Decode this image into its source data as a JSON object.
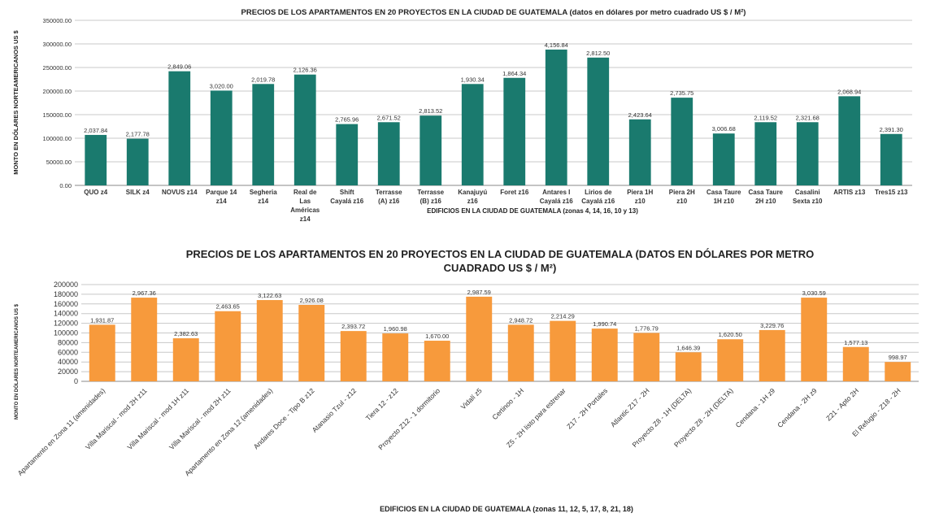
{
  "chart_data": [
    {
      "type": "bar",
      "title": "PRECIOS DE LOS APARTAMENTOS EN 20 PROYECTOS EN LA CIUDAD DE GUATEMALA (datos en dólares por metro cuadrado US $ / M²)",
      "xlabel": "EDIFICIOS EN LA CIUDAD DE GUATEMALA (zonas  4, 14, 16, 10 y 13)",
      "ylabel": "MONTO EN DÓLARES NORTEAMERICANOS US $",
      "ylim": [
        0,
        350000
      ],
      "yticks": [
        "0.00",
        "50000.00",
        "100000.00",
        "150000.00",
        "200000.00",
        "250000.00",
        "300000.00",
        "350000.00"
      ],
      "grid": true,
      "color": "#1a7a6e",
      "categories": [
        [
          "QUO z4"
        ],
        [
          "SILK z4"
        ],
        [
          "NOVUS z14"
        ],
        [
          "Parque 14",
          "z14"
        ],
        [
          "Segheria",
          "z14"
        ],
        [
          "Real de",
          "Las",
          "Américas",
          "z14"
        ],
        [
          "Shift",
          "Cayalá z16"
        ],
        [
          "Terrasse",
          "(A) z16"
        ],
        [
          "Terrasse",
          "(B) z16"
        ],
        [
          "Kanajuyú",
          "z16"
        ],
        [
          "Foret z16"
        ],
        [
          "Antares I",
          "Cayalá z16"
        ],
        [
          "Lirios de",
          "Cayalá z16"
        ],
        [
          "Piera 1H",
          "z10"
        ],
        [
          "Piera 2H",
          "z10"
        ],
        [
          "Casa Taure",
          "1H z10"
        ],
        [
          "Casa Taure",
          "2H z10"
        ],
        [
          "Casalini",
          "Sexta z10"
        ],
        [
          "ARTIS z13"
        ],
        [
          "Tres15 z13"
        ]
      ],
      "values": [
        107000,
        99000,
        242000,
        201000,
        215000,
        235000,
        130000,
        134000,
        148000,
        215000,
        228000,
        288000,
        271000,
        140000,
        186000,
        110000,
        134000,
        134000,
        189000,
        109000
      ],
      "labels": [
        "2,037.84",
        "2,177.78",
        "2,849.06",
        "3,020.00",
        "2,019.78",
        "2,126.36",
        "2,765.96",
        "2,671.52",
        "2,813.52",
        "1,930.34",
        "1,864.34",
        "4,156.84",
        "2,812.50",
        "2,423.64",
        "2,735.75",
        "3,006.68",
        "2,119.52",
        "2,321.68",
        "2,068.94",
        "2,391.30"
      ]
    },
    {
      "type": "bar",
      "title": [
        "PRECIOS DE LOS APARTAMENTOS EN 20 PROYECTOS EN LA CIUDAD DE GUATEMALA (DATOS EN DÓLARES POR METRO",
        "CUADRADO US $ / M²)"
      ],
      "xlabel": "EDIFICIOS EN LA CIUDAD DE GUATEMALA (zonas 11, 12, 5, 17, 8, 21, 18)",
      "ylabel": "MONTO EN DÓLARES NORTEAMERICANOS US $",
      "ylim": [
        0,
        200000
      ],
      "yticks": [
        "0",
        "20000",
        "40000",
        "60000",
        "80000",
        "100000",
        "120000",
        "140000",
        "160000",
        "180000",
        "200000"
      ],
      "grid": true,
      "color": "#f79a3c",
      "categories": [
        "Apartamento en Zona 11 (amenidades)",
        "Villa Mariscal - mod 2H z11",
        "Villa Mariscal - mod 1H z11",
        "Villa Mariscal - mod 2H z11",
        "Apartamento en Zona 12 (amenidades)",
        "Andares Doce - Tipo B z12",
        "Atanasio Tzul - z12",
        "Tiera 12 - z12",
        "Proyecto Z12 - 1 dormitorio",
        "Vidalí z5",
        "Certinoo - 1H",
        "Z5 - 2H listo para estrenar",
        "Z17 - 2H Portales",
        "Atlantic Z17 - 2H",
        "Proyecto Z8 - 1H (DELTA)",
        "Proyecto Z8 - 2H (DELTA)",
        "Cendana - 1H z9",
        "Cendana - 2H z9",
        "Z21 - Apto 2H",
        "El Refugio - Z18 - 2H"
      ],
      "values": [
        117000,
        173000,
        89000,
        145000,
        168000,
        158000,
        104000,
        99000,
        84000,
        175000,
        117000,
        125000,
        109000,
        100000,
        60000,
        87000,
        106000,
        173000,
        71000,
        40000
      ],
      "labels": [
        "1,931.87",
        "2,967.36",
        "2,382.63",
        "2,463.65",
        "3,122.63",
        "2,926.08",
        "2,393.72",
        "1,960.98",
        "1,670.00",
        "2,987.59",
        "2,948.72",
        "2,214.29",
        "1,990.74",
        "1,776.79",
        "1,646.39",
        "1,620.50",
        "3,229.76",
        "3,030.59",
        "1,577.13",
        "998.97"
      ]
    }
  ]
}
